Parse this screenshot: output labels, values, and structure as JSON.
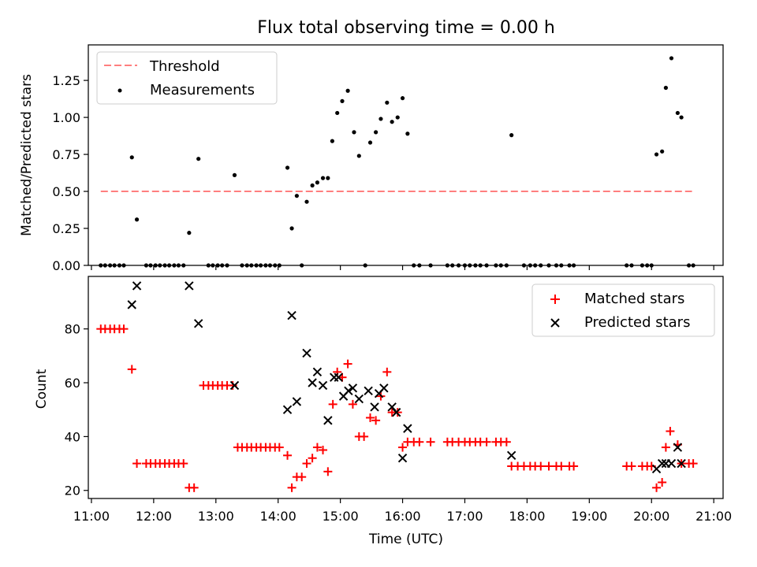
{
  "chart_data": {
    "type": "scatter",
    "title": "Flux total observing time = 0.00 h",
    "x_axis": {
      "label": "Time (UTC)",
      "ticks": [
        {
          "value": 11,
          "label": "11:00"
        },
        {
          "value": 12,
          "label": "12:00"
        },
        {
          "value": 13,
          "label": "13:00"
        },
        {
          "value": 14,
          "label": "14:00"
        },
        {
          "value": 15,
          "label": "15:00"
        },
        {
          "value": 16,
          "label": "16:00"
        },
        {
          "value": 17,
          "label": "17:00"
        },
        {
          "value": 18,
          "label": "18:00"
        },
        {
          "value": 19,
          "label": "19:00"
        },
        {
          "value": 20,
          "label": "20:00"
        },
        {
          "value": 21,
          "label": "21:00"
        }
      ],
      "xlim": [
        10.95,
        21.15
      ]
    },
    "top_panel": {
      "ylabel": "Matched/Predicted stars",
      "ylim": [
        0,
        1.49
      ],
      "yticks": [
        {
          "value": 0,
          "label": "0.00"
        },
        {
          "value": 0.25,
          "label": "0.25"
        },
        {
          "value": 0.5,
          "label": "0.50"
        },
        {
          "value": 0.75,
          "label": "0.75"
        },
        {
          "value": 1.0,
          "label": "1.00"
        },
        {
          "value": 1.25,
          "label": "1.25"
        }
      ],
      "legend": {
        "position": "top-left",
        "threshold_label": "Threshold",
        "measurements_label": "Measurements"
      },
      "threshold": {
        "y": 0.5,
        "x_start": 11.15,
        "x_end": 20.65,
        "color": "#ff7f7f"
      },
      "measurements": {
        "color": "#000000",
        "points": [
          [
            11.15,
            0
          ],
          [
            11.22,
            0
          ],
          [
            11.3,
            0
          ],
          [
            11.37,
            0
          ],
          [
            11.45,
            0
          ],
          [
            11.52,
            0
          ],
          [
            11.65,
            0.73
          ],
          [
            11.73,
            0.31
          ],
          [
            11.88,
            0
          ],
          [
            11.95,
            0
          ],
          [
            12.03,
            0
          ],
          [
            12.1,
            0
          ],
          [
            12.18,
            0
          ],
          [
            12.25,
            0
          ],
          [
            12.33,
            0
          ],
          [
            12.4,
            0
          ],
          [
            12.48,
            0
          ],
          [
            12.57,
            0.22
          ],
          [
            12.72,
            0.72
          ],
          [
            12.88,
            0
          ],
          [
            12.95,
            0
          ],
          [
            13.03,
            0
          ],
          [
            13.1,
            0
          ],
          [
            13.18,
            0
          ],
          [
            13.3,
            0.61
          ],
          [
            13.42,
            0
          ],
          [
            13.5,
            0
          ],
          [
            13.57,
            0
          ],
          [
            13.65,
            0
          ],
          [
            13.72,
            0
          ],
          [
            13.8,
            0
          ],
          [
            13.87,
            0
          ],
          [
            13.95,
            0
          ],
          [
            14.02,
            0
          ],
          [
            14.15,
            0.66
          ],
          [
            14.22,
            0.25
          ],
          [
            14.3,
            0.47
          ],
          [
            14.38,
            0
          ],
          [
            14.46,
            0.43
          ],
          [
            14.55,
            0.54
          ],
          [
            14.63,
            0.56
          ],
          [
            14.72,
            0.59
          ],
          [
            14.8,
            0.59
          ],
          [
            14.87,
            0.84
          ],
          [
            14.95,
            1.03
          ],
          [
            15.03,
            1.11
          ],
          [
            15.12,
            1.18
          ],
          [
            15.22,
            0.9
          ],
          [
            15.3,
            0.74
          ],
          [
            15.4,
            0
          ],
          [
            15.48,
            0.83
          ],
          [
            15.57,
            0.9
          ],
          [
            15.65,
            0.99
          ],
          [
            15.75,
            1.1
          ],
          [
            15.83,
            0.97
          ],
          [
            15.92,
            1.0
          ],
          [
            16.0,
            1.13
          ],
          [
            16.08,
            0.89
          ],
          [
            16.18,
            0
          ],
          [
            16.27,
            0
          ],
          [
            16.45,
            0
          ],
          [
            16.72,
            0
          ],
          [
            16.8,
            0
          ],
          [
            16.9,
            0
          ],
          [
            17.0,
            0
          ],
          [
            17.08,
            0
          ],
          [
            17.17,
            0
          ],
          [
            17.25,
            0
          ],
          [
            17.35,
            0
          ],
          [
            17.5,
            0
          ],
          [
            17.58,
            0
          ],
          [
            17.67,
            0
          ],
          [
            17.75,
            0.88
          ],
          [
            17.95,
            0
          ],
          [
            18.05,
            0
          ],
          [
            18.13,
            0
          ],
          [
            18.22,
            0
          ],
          [
            18.35,
            0
          ],
          [
            18.47,
            0
          ],
          [
            18.55,
            0
          ],
          [
            18.68,
            0
          ],
          [
            18.75,
            0
          ],
          [
            19.6,
            0
          ],
          [
            19.68,
            0
          ],
          [
            19.85,
            0
          ],
          [
            19.93,
            0
          ],
          [
            20.0,
            0
          ],
          [
            20.08,
            0.75
          ],
          [
            20.17,
            0.77
          ],
          [
            20.23,
            1.2
          ],
          [
            20.32,
            1.4
          ],
          [
            20.42,
            1.03
          ],
          [
            20.48,
            1.0
          ],
          [
            20.6,
            0
          ],
          [
            20.67,
            0
          ]
        ]
      }
    },
    "bottom_panel": {
      "ylabel": "Count",
      "ylim": [
        17,
        99.5
      ],
      "yticks": [
        {
          "value": 20,
          "label": "20"
        },
        {
          "value": 40,
          "label": "40"
        },
        {
          "value": 60,
          "label": "60"
        },
        {
          "value": 80,
          "label": "80"
        }
      ],
      "legend": {
        "position": "top-right",
        "matched_label": "Matched stars",
        "predicted_label": "Predicted stars"
      },
      "matched": {
        "color": "#ff0000",
        "points": [
          [
            11.15,
            80
          ],
          [
            11.22,
            80
          ],
          [
            11.3,
            80
          ],
          [
            11.37,
            80
          ],
          [
            11.45,
            80
          ],
          [
            11.52,
            80
          ],
          [
            11.65,
            65
          ],
          [
            11.73,
            30
          ],
          [
            11.88,
            30
          ],
          [
            11.95,
            30
          ],
          [
            12.03,
            30
          ],
          [
            12.1,
            30
          ],
          [
            12.18,
            30
          ],
          [
            12.25,
            30
          ],
          [
            12.33,
            30
          ],
          [
            12.4,
            30
          ],
          [
            12.48,
            30
          ],
          [
            12.57,
            21
          ],
          [
            12.65,
            21
          ],
          [
            12.8,
            59
          ],
          [
            12.88,
            59
          ],
          [
            12.95,
            59
          ],
          [
            13.03,
            59
          ],
          [
            13.1,
            59
          ],
          [
            13.18,
            59
          ],
          [
            13.27,
            59
          ],
          [
            13.35,
            36
          ],
          [
            13.42,
            36
          ],
          [
            13.5,
            36
          ],
          [
            13.57,
            36
          ],
          [
            13.65,
            36
          ],
          [
            13.72,
            36
          ],
          [
            13.8,
            36
          ],
          [
            13.87,
            36
          ],
          [
            13.95,
            36
          ],
          [
            14.02,
            36
          ],
          [
            14.15,
            33
          ],
          [
            14.22,
            21
          ],
          [
            14.3,
            25
          ],
          [
            14.38,
            25
          ],
          [
            14.46,
            30
          ],
          [
            14.55,
            32
          ],
          [
            14.63,
            36
          ],
          [
            14.72,
            35
          ],
          [
            14.8,
            27
          ],
          [
            14.88,
            52
          ],
          [
            14.95,
            64
          ],
          [
            15.03,
            62
          ],
          [
            15.12,
            67
          ],
          [
            15.2,
            52
          ],
          [
            15.3,
            40
          ],
          [
            15.38,
            40
          ],
          [
            15.48,
            47
          ],
          [
            15.57,
            46
          ],
          [
            15.65,
            55
          ],
          [
            15.75,
            64
          ],
          [
            15.83,
            49
          ],
          [
            15.92,
            49
          ],
          [
            16.0,
            36
          ],
          [
            16.08,
            38
          ],
          [
            16.18,
            38
          ],
          [
            16.27,
            38
          ],
          [
            16.45,
            38
          ],
          [
            16.72,
            38
          ],
          [
            16.8,
            38
          ],
          [
            16.9,
            38
          ],
          [
            17.0,
            38
          ],
          [
            17.08,
            38
          ],
          [
            17.17,
            38
          ],
          [
            17.25,
            38
          ],
          [
            17.35,
            38
          ],
          [
            17.5,
            38
          ],
          [
            17.58,
            38
          ],
          [
            17.67,
            38
          ],
          [
            17.75,
            29
          ],
          [
            17.85,
            29
          ],
          [
            17.95,
            29
          ],
          [
            18.05,
            29
          ],
          [
            18.13,
            29
          ],
          [
            18.22,
            29
          ],
          [
            18.35,
            29
          ],
          [
            18.47,
            29
          ],
          [
            18.55,
            29
          ],
          [
            18.68,
            29
          ],
          [
            18.75,
            29
          ],
          [
            19.6,
            29
          ],
          [
            19.68,
            29
          ],
          [
            19.85,
            29
          ],
          [
            19.93,
            29
          ],
          [
            20.0,
            29
          ],
          [
            20.08,
            21
          ],
          [
            20.17,
            23
          ],
          [
            20.23,
            36
          ],
          [
            20.3,
            42
          ],
          [
            20.42,
            37
          ],
          [
            20.48,
            30
          ],
          [
            20.6,
            30
          ],
          [
            20.67,
            30
          ]
        ]
      },
      "predicted": {
        "color": "#000000",
        "points": [
          [
            11.65,
            89
          ],
          [
            11.73,
            96
          ],
          [
            12.57,
            96
          ],
          [
            12.72,
            82
          ],
          [
            13.3,
            59
          ],
          [
            14.15,
            50
          ],
          [
            14.22,
            85
          ],
          [
            14.3,
            53
          ],
          [
            14.46,
            71
          ],
          [
            14.55,
            60
          ],
          [
            14.63,
            64
          ],
          [
            14.72,
            59
          ],
          [
            14.8,
            46
          ],
          [
            14.9,
            62
          ],
          [
            14.97,
            62
          ],
          [
            15.05,
            55
          ],
          [
            15.13,
            57
          ],
          [
            15.2,
            58
          ],
          [
            15.3,
            54
          ],
          [
            15.45,
            57
          ],
          [
            15.55,
            51
          ],
          [
            15.62,
            56
          ],
          [
            15.7,
            58
          ],
          [
            15.83,
            51
          ],
          [
            15.9,
            49
          ],
          [
            16.0,
            32
          ],
          [
            16.08,
            43
          ],
          [
            17.75,
            33
          ],
          [
            20.08,
            28
          ],
          [
            20.17,
            30
          ],
          [
            20.23,
            30
          ],
          [
            20.32,
            30
          ],
          [
            20.42,
            36
          ],
          [
            20.48,
            30
          ]
        ]
      }
    }
  }
}
